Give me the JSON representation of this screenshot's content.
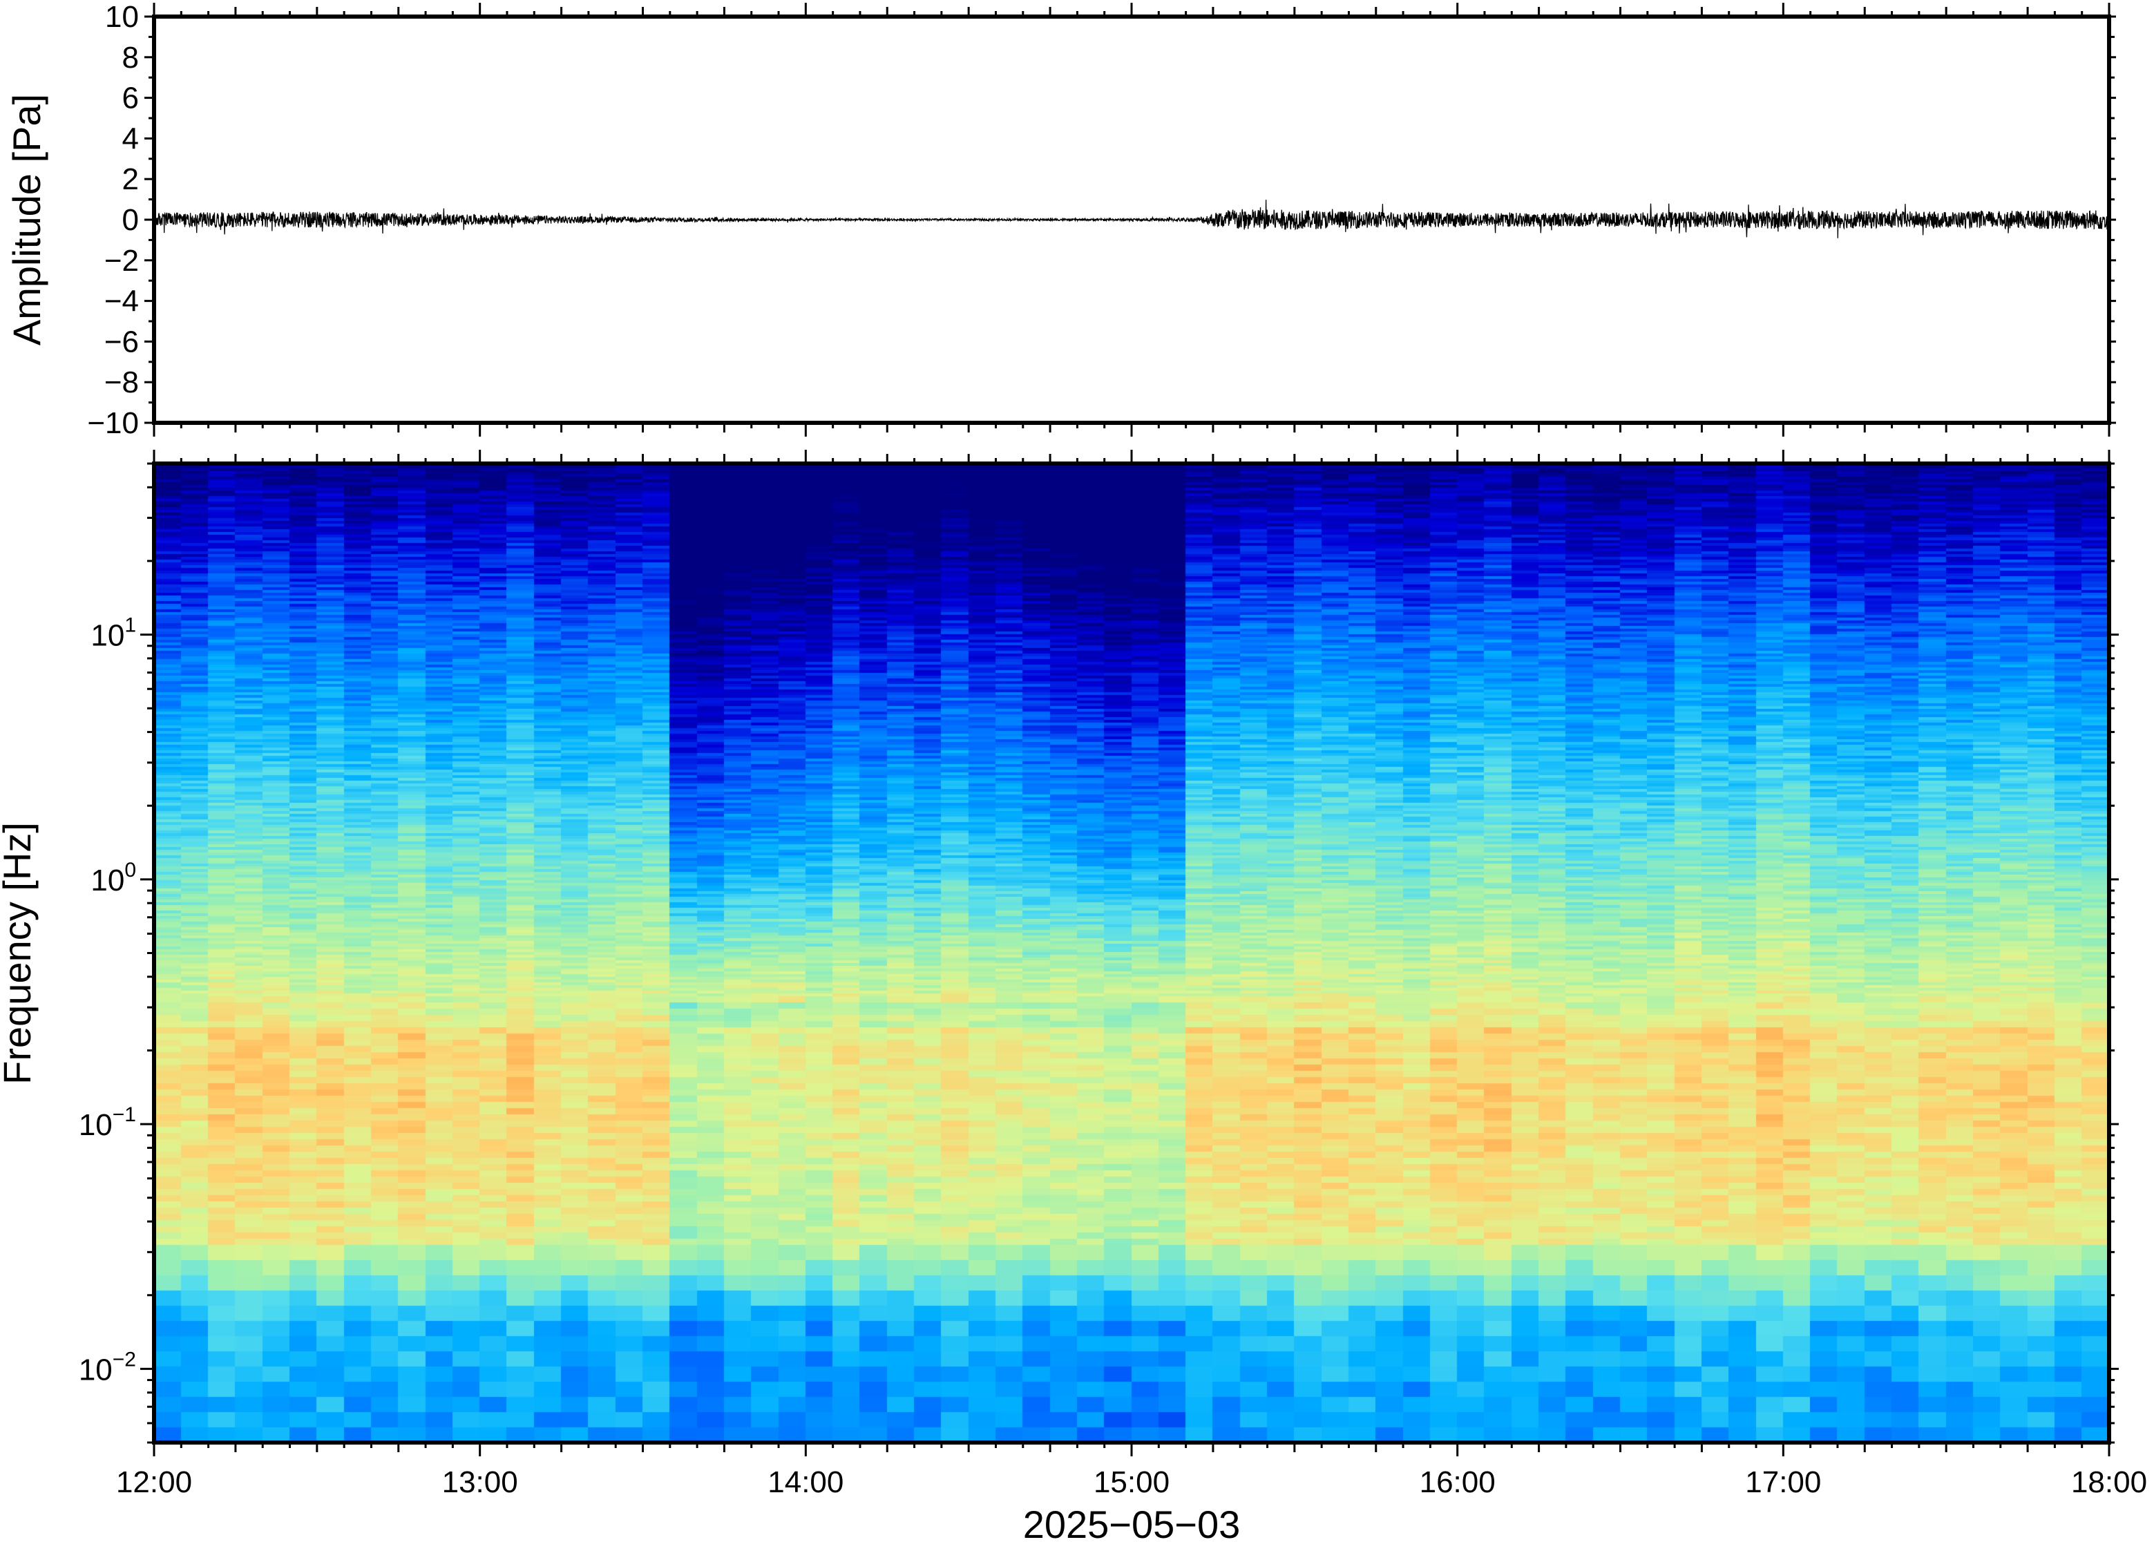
{
  "chart_data": [
    {
      "type": "line",
      "ylabel": "Amplitude [Pa]",
      "xlabel": "",
      "ylim": [
        -10,
        10
      ],
      "yticks": [
        "10",
        "8",
        "6",
        "4",
        "2",
        "0",
        "−2",
        "−4",
        "−6",
        "−8",
        "−10"
      ],
      "ytick_values": [
        10,
        8,
        6,
        4,
        2,
        0,
        -2,
        -4,
        -6,
        -8,
        -10
      ],
      "xlim": [
        "12:00",
        "18:00"
      ],
      "grid": false,
      "series_color": "#000000",
      "noise_envelope": {
        "hours": [
          12.0,
          12.5,
          13.0,
          13.5,
          14.0,
          14.5,
          15.0,
          15.2,
          15.3,
          15.6,
          16.0,
          16.5,
          17.0,
          17.5,
          18.0
        ],
        "amplitude_pa": [
          0.35,
          0.4,
          0.25,
          0.12,
          0.06,
          0.05,
          0.05,
          0.1,
          0.55,
          0.45,
          0.35,
          0.35,
          0.45,
          0.4,
          0.5
        ]
      }
    },
    {
      "type": "heatmap",
      "ylabel": "Frequency [Hz]",
      "xlabel": "2025−05−03",
      "yscale": "log",
      "ylim": [
        0.005,
        50
      ],
      "ytick_values": [
        10,
        1,
        0.1,
        0.01
      ],
      "yticks": [
        {
          "base": "10",
          "exp": "1"
        },
        {
          "base": "10",
          "exp": "0"
        },
        {
          "base": "10",
          "exp": "−1"
        },
        {
          "base": "10",
          "exp": "−2"
        }
      ],
      "xticks": [
        "12:00",
        "13:00",
        "14:00",
        "15:00",
        "16:00",
        "17:00",
        "18:00"
      ],
      "colormap": "jet",
      "colormap_stops": [
        "#000080",
        "#0000d8",
        "#0066ff",
        "#00b0ff",
        "#55ddee",
        "#9ef0b0",
        "#ddf590",
        "#ffd070",
        "#ff9940"
      ],
      "quiet_intervals": [
        {
          "start": "13:35",
          "end": "14:00",
          "depth": 1.0
        },
        {
          "start": "14:00",
          "end": "14:45",
          "depth": 0.6
        },
        {
          "start": "14:45",
          "end": "15:12",
          "depth": 0.85
        }
      ]
    }
  ]
}
